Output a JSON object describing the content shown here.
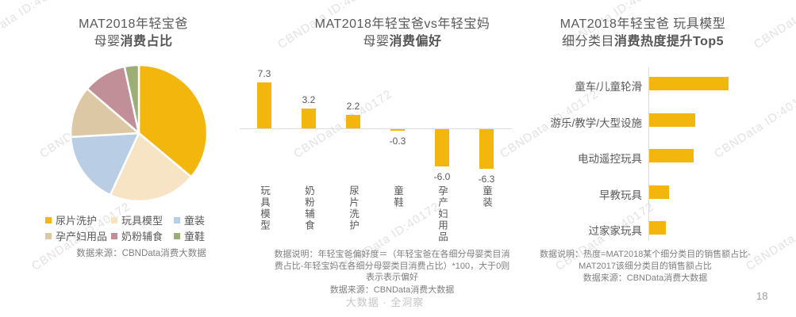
{
  "watermark": {
    "text": "CBNData ID:40172"
  },
  "footer": "大数据 · 全洞察",
  "page_number": "18",
  "charts": {
    "pie": {
      "title_line1": "MAT2018年轻宝爸",
      "title_line2_normal": "母婴",
      "title_line2_bold": "消费占比",
      "source": "数据来源：CBNData消费大数据",
      "chart_data": {
        "type": "pie",
        "title": "MAT2018年轻宝爸母婴消费占比",
        "labels": [
          "尿片洗护",
          "玩具模型",
          "童装",
          "孕产妇用品",
          "奶粉辅食",
          "童鞋"
        ],
        "values_percent_estimated": [
          36.1,
          20.8,
          17.2,
          12.2,
          10.3,
          3.4
        ],
        "colors": [
          "#F2B60C",
          "#F6E4C4",
          "#B9CDE4",
          "#DCC8A5",
          "#C08F98",
          "#9CAD75"
        ],
        "start_angle_deg": 0,
        "direction": "clockwise",
        "legend_position": "bottom"
      }
    },
    "bar": {
      "title_line1": "MAT2018年轻宝爸vs年轻宝妈",
      "title_line2_normal": "母婴",
      "title_line2_bold": "消费偏好",
      "note": "数据说明：年轻宝爸偏好度＝（年轻宝爸在各细分母婴类目消费占比-年轻宝妈在各细分母婴类目消费占比）*100，大于0则表示表示偏好",
      "source": "数据来源：CBNData消费大数据",
      "chart_data": {
        "type": "bar",
        "title": "MAT2018年轻宝爸vs年轻宝妈母婴消费偏好",
        "categories": [
          "玩具模型",
          "奶粉辅食",
          "尿片洗护",
          "童鞋",
          "孕产妇用品",
          "童装"
        ],
        "values": [
          7.3,
          3.2,
          2.2,
          -0.3,
          -6.0,
          -6.3
        ],
        "bar_color": "#F2B60C",
        "value_labels": [
          "7.3",
          "3.2",
          "2.2",
          "-0.3",
          "-6.0",
          "-6.3"
        ],
        "baseline": 0,
        "ylim": [
          -7.5,
          8.5
        ],
        "grid": false
      }
    },
    "hbar": {
      "title_line1": "MAT2018年轻宝爸 玩具模型",
      "title_line2_normal": "细分类目",
      "title_line2_bold": "消费热度提升Top5",
      "note": "数据说明：热度=MAT2018某个细分类目的销售额占比-MAT2017该细分类目的销售额占比",
      "source": "数据来源：CBNData消费大数据",
      "chart_data": {
        "type": "bar",
        "orientation": "horizontal",
        "title": "MAT2018年轻宝爸 玩具模型 细分类目消费热度提升Top5",
        "categories": [
          "童车/儿童轮滑",
          "游乐/教学/大型设施",
          "电动遥控玩具",
          "早教玩具",
          "过家家玩具"
        ],
        "values_relative": [
          100,
          58,
          56,
          25,
          21
        ],
        "bar_color": "#F2B60C",
        "value_labels_shown": false,
        "grid": false
      }
    }
  }
}
